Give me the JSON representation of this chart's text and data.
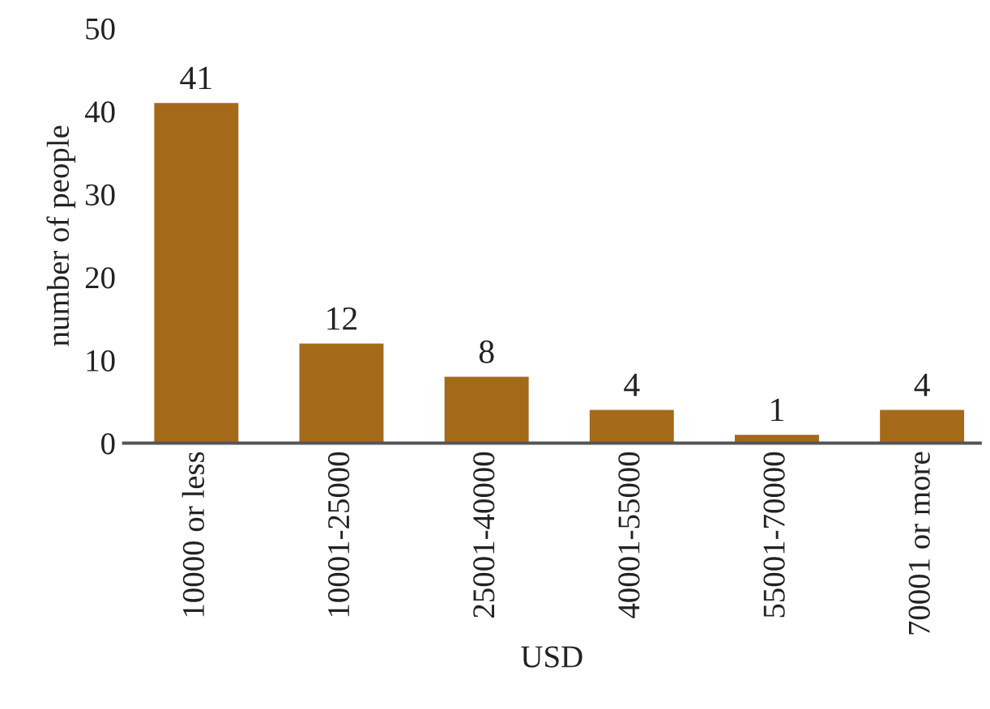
{
  "chart_data": {
    "type": "bar",
    "categories": [
      "10000 or less",
      "10001-25000",
      "25001-40000",
      "40001-55000",
      "55001-70000",
      "70001 or more"
    ],
    "values": [
      41,
      12,
      8,
      4,
      1,
      4
    ],
    "color": "#a5691a",
    "xlabel": "USD",
    "ylabel": "number of people",
    "ylim": [
      0,
      50
    ],
    "yticks": [
      0,
      10,
      20,
      30,
      40,
      50
    ],
    "data_labels": true,
    "grid": false,
    "legend": false
  }
}
